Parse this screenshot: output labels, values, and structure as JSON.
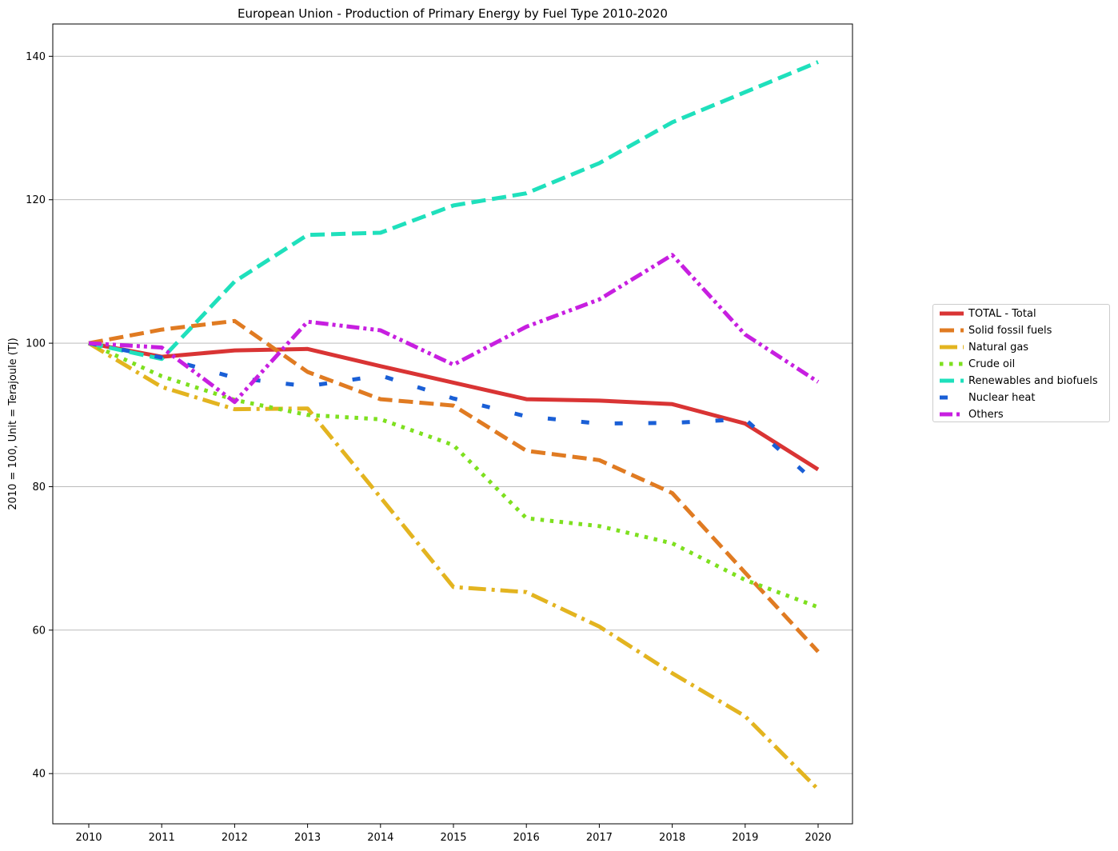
{
  "chart_data": {
    "type": "line",
    "title": "European Union - Production of Primary Energy by Fuel Type 2010-2020",
    "xlabel": "",
    "ylabel": "2010 = 100, Unit = Terajoule (TJ)",
    "x": [
      2010,
      2011,
      2012,
      2013,
      2014,
      2015,
      2016,
      2017,
      2018,
      2019,
      2020
    ],
    "ylim": [
      33,
      144.5
    ],
    "yticks": [
      40,
      60,
      80,
      100,
      120,
      140
    ],
    "grid": "y",
    "legend_position": "right",
    "series": [
      {
        "name": "TOTAL - Total",
        "color": "#d93434",
        "style": "solid",
        "values": [
          100,
          98.1,
          99.0,
          99.2,
          96.8,
          94.5,
          92.2,
          92.0,
          91.5,
          88.8,
          82.4
        ]
      },
      {
        "name": "Solid fossil fuels",
        "color": "#e07b22",
        "style": "dashed",
        "values": [
          100,
          101.9,
          103.1,
          96.0,
          92.2,
          91.3,
          85.0,
          83.7,
          79.1,
          68.0,
          57.0
        ]
      },
      {
        "name": "Natural gas",
        "color": "#e3b420",
        "style": "dashdot",
        "values": [
          100,
          93.9,
          90.8,
          90.9,
          78.5,
          66.0,
          65.3,
          60.5,
          54.0,
          48.0,
          37.8
        ]
      },
      {
        "name": "Crude oil",
        "color": "#7ee01f",
        "style": "dotted",
        "values": [
          100,
          95.4,
          92.1,
          90.0,
          89.4,
          85.8,
          75.6,
          74.5,
          72.1,
          67.0,
          63.2
        ]
      },
      {
        "name": "Renewables and biofuels",
        "color": "#1fe0bc",
        "style": "dashed",
        "values": [
          100,
          97.8,
          108.6,
          115.1,
          115.4,
          119.2,
          120.9,
          125.1,
          130.8,
          135.0,
          139.2
        ]
      },
      {
        "name": "Nuclear heat",
        "color": "#1a5fd6",
        "style": "sparse-dashed",
        "values": [
          100,
          98.0,
          95.2,
          94.0,
          95.5,
          92.3,
          89.8,
          88.8,
          88.9,
          89.4,
          80.3
        ]
      },
      {
        "name": "Others",
        "color": "#c71fe0",
        "style": "dashdotdot",
        "values": [
          100,
          99.4,
          91.8,
          103.0,
          101.8,
          97.0,
          102.3,
          106.1,
          112.3,
          101.2,
          94.6
        ]
      }
    ]
  }
}
